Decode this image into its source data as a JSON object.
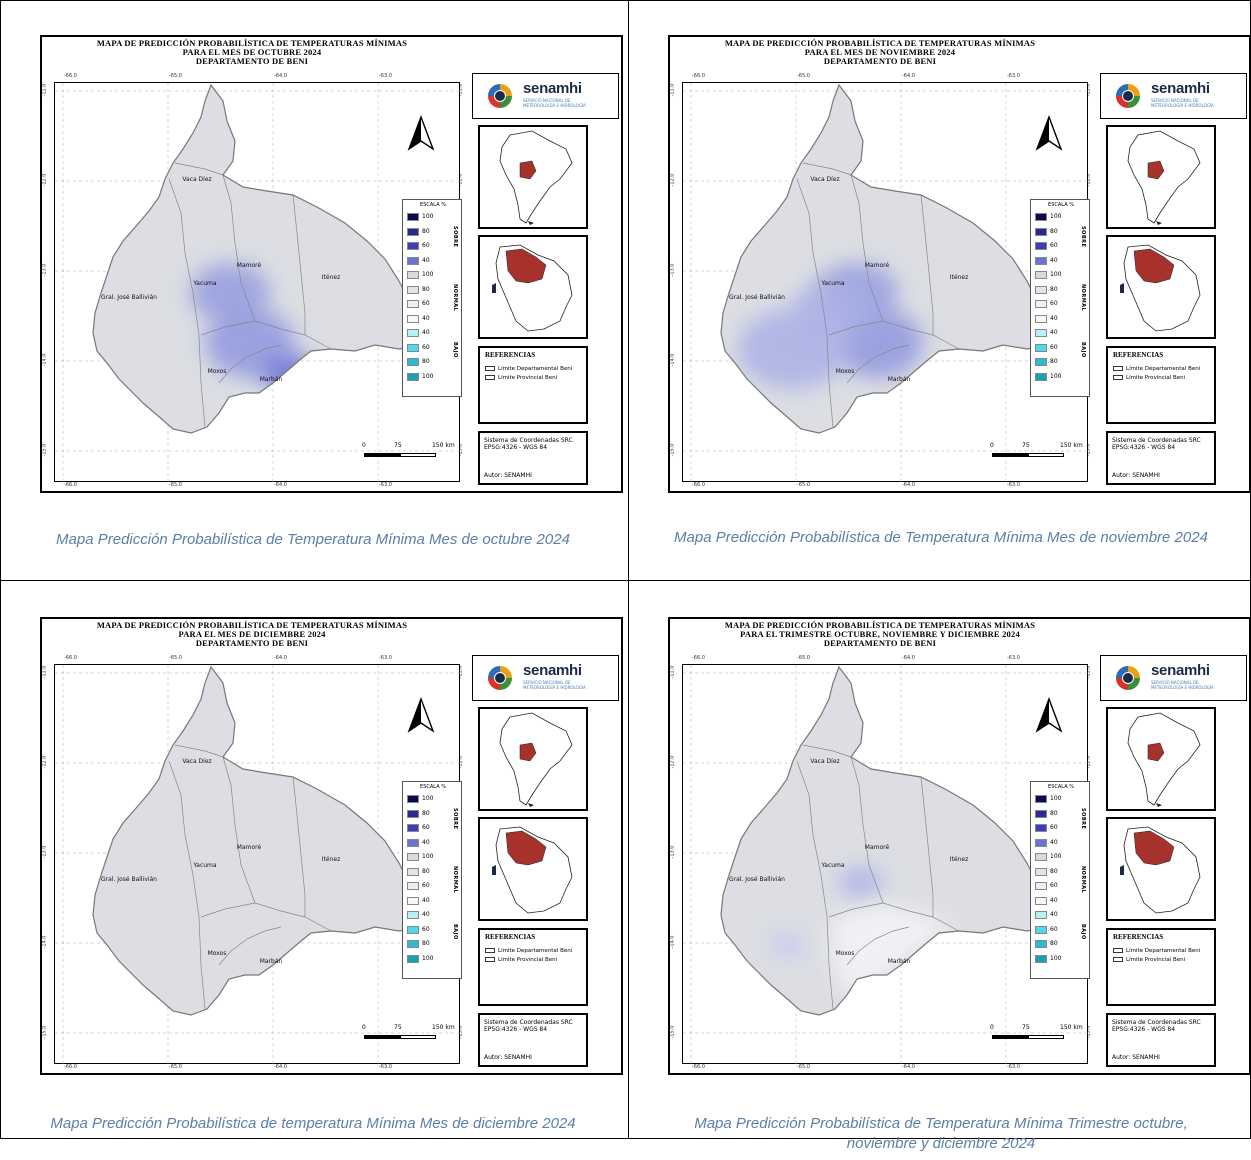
{
  "maps": [
    {
      "title_lines": [
        "MAPA DE PREDICCIÓN PROBABILÍSTICA DE TEMPERATURAS MÍNIMAS",
        "PARA EL MES DE OCTUBRE 2024",
        "DEPARTAMENTO DE BENI"
      ],
      "caption": "Mapa Predicción Probabilística  de Temperatura Mínima Mes de octubre 2024",
      "blue_zones": [
        "center",
        "southeast"
      ]
    },
    {
      "title_lines": [
        "MAPA DE PREDICCIÓN PROBABILÍSTICA DE TEMPERATURAS MÍNIMAS",
        "PARA EL MES DE NOVIEMBRE 2024",
        "DEPARTAMENTO DE BENI"
      ],
      "caption": "Mapa Predicción Probabilística  de Temperatura Mínima Mes de noviembre 2024",
      "blue_zones": [
        "center",
        "southwest"
      ]
    },
    {
      "title_lines": [
        "MAPA DE PREDICCIÓN PROBABILÍSTICA DE TEMPERATURAS MÍNIMAS",
        "PARA EL MES DE DICIEMBRE 2024",
        "DEPARTAMENTO DE BENI"
      ],
      "caption": "Mapa Predicción Probabilística  de temperatura Mínima Mes de diciembre 2024",
      "blue_zones": []
    },
    {
      "title_lines": [
        "MAPA DE PREDICCIÓN PROBABILÍSTICA DE TEMPERATURAS MÍNIMAS",
        "PARA EL TRIMESTRE OCTUBRE, NOVIEMBRE Y DICIEMBRE 2024",
        "DEPARTAMENTO DE BENI"
      ],
      "caption": "Mapa Predicción Probabilística  de Temperatura Mínima Trimestre octubre, noviembre y diciembre 2024",
      "blue_zones": [
        "center-small",
        "west-small"
      ]
    }
  ],
  "common": {
    "top_ticks": [
      "-66.0",
      "-65.0",
      "-64.0",
      "-63.0"
    ],
    "bottom_ticks": [
      "-66.0",
      "-65.0",
      "-64.0",
      "-63.0"
    ],
    "left_ticks": [
      "-11.0",
      "-12.0",
      "-13.0",
      "-14.0",
      "-15.0"
    ],
    "right_ticks": [
      "-11.0",
      "-12.0",
      "-13.0",
      "-14.0",
      "-15.0"
    ],
    "provinces": [
      "Vaca Díez",
      "Yacuma",
      "Mamoré",
      "Iténez",
      "Gral. José Ballivián",
      "Moxos",
      "Marbán"
    ],
    "logo": {
      "name": "senamhi",
      "subtitle": "SERVICIO NACIONAL DE METEOROLOGÍA E HIDROLOGÍA"
    },
    "legend": {
      "title": "ESCALA %",
      "groups": [
        "SOBRE",
        "NORMAL",
        "BAJO"
      ],
      "values": [
        "100",
        "80",
        "60",
        "40",
        "100",
        "80",
        "60",
        "40",
        "40",
        "60",
        "80",
        "100"
      ],
      "colors": [
        "#0a0a4e",
        "#2b2b8f",
        "#3d3db8",
        "#6a72d6",
        "#d9dadf",
        "#e3e4e8",
        "#eeeff2",
        "#f8f8fa",
        "#b8f0f7",
        "#4fd9ec",
        "#2bbcd4",
        "#1b9fb5"
      ]
    },
    "references": {
      "title": "REFERENCIAS",
      "items": [
        "Límite Departamental Beni",
        "Límite Provincial Beni"
      ]
    },
    "source": {
      "line1": "Sistema de Coordenadas SRC",
      "line2": "EPSG:4326 - WGS 84",
      "author": "Autor: SENAMHI"
    },
    "scale": {
      "n0": "0",
      "n75": "75",
      "n150": "150 km"
    },
    "colors": {
      "base_fill": "#dcdee3",
      "blue_strong": "#5b63d6",
      "blue_mid": "#8c94de",
      "blue_light": "#b8bde9",
      "dept_red": "#a6322b",
      "caption": "#5b7fa6"
    }
  }
}
